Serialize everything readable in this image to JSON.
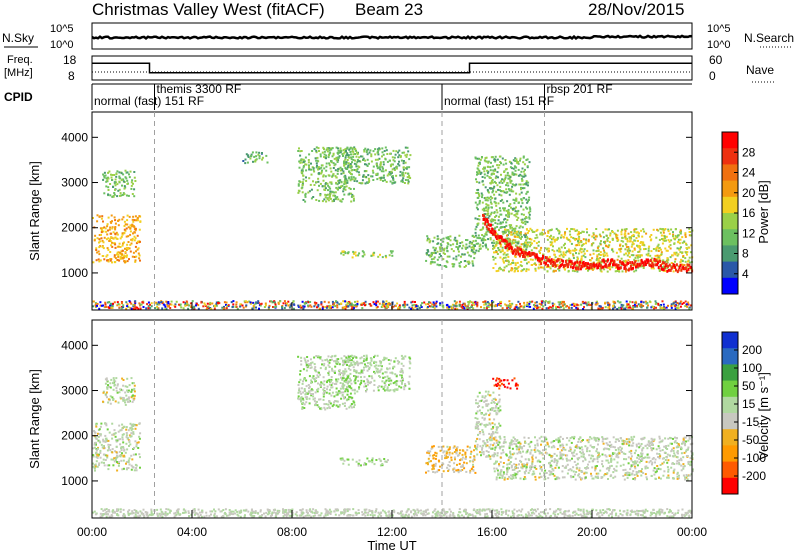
{
  "header": {
    "title": "Christmas Valley West (fitACF)",
    "beam": "Beam 23",
    "date": "28/Nov/2015"
  },
  "top_panels": {
    "nsky_label": "N.Sky",
    "nsearch_label": "N.Search",
    "count_ticks": [
      "10^5",
      "10^0"
    ],
    "freq_label": "Freq.",
    "freq_unit": "[MHz]",
    "freq_ticks": [
      "18",
      "8"
    ],
    "nave_label": "Nave",
    "nave_ticks": [
      "60",
      "0"
    ],
    "cpid_label": "CPID",
    "cpid_segments": [
      {
        "start_hour": 0,
        "end_hour": 14,
        "labels": [
          "normal",
          "(fast)",
          "151 RF"
        ]
      },
      {
        "start_hour": 2.5,
        "end_hour": 14,
        "labels": [
          "themis",
          "3300 RF"
        ]
      },
      {
        "start_hour": 14,
        "end_hour": 24,
        "labels": [
          "normal",
          "(fast)",
          "151 RF"
        ]
      },
      {
        "start_hour": 18.1,
        "end_hour": 24,
        "labels": [
          "rbsp",
          "201 RF"
        ]
      }
    ],
    "freq_steps": [
      {
        "from": 0,
        "to": 2.3,
        "mhz": 15
      },
      {
        "from": 2.3,
        "to": 15.1,
        "mhz": 11
      },
      {
        "from": 15.1,
        "to": 24,
        "mhz": 15
      }
    ]
  },
  "colors": {
    "power_scale": [
      "#0000ff",
      "#2a58a8",
      "#4a9a70",
      "#6cc060",
      "#9ad048",
      "#f2d020",
      "#f49a10",
      "#f07010",
      "#ee3010",
      "#ff0000"
    ],
    "velocity_scale": [
      "#ff0000",
      "#ff5a00",
      "#ff9a00",
      "#f0b020",
      "#c8c8c0",
      "#b0d8a0",
      "#70d040",
      "#3aa040",
      "#2a6ac0",
      "#1030d0"
    ],
    "grid_dash": "#a0a0a0"
  },
  "chart_data": [
    {
      "type": "heatmap",
      "name": "Power",
      "ylabel": "Slant Range [km]",
      "xlabel": "",
      "x_ticks": [],
      "y_ticks": [
        "1000",
        "2000",
        "3000",
        "4000"
      ],
      "xlim": [
        0,
        24
      ],
      "ylim": [
        180,
        4560
      ],
      "colorbar": {
        "label": "Power [dB]",
        "ticks": [
          "4",
          "8",
          "12",
          "16",
          "20",
          "24",
          "28"
        ],
        "range": [
          0,
          32
        ]
      },
      "regions": [
        {
          "x": [
            0.0,
            1.9
          ],
          "y": [
            1250,
            2300
          ],
          "value": 20
        },
        {
          "x": [
            0.4,
            1.7
          ],
          "y": [
            2700,
            3300
          ],
          "value": 12
        },
        {
          "x": [
            6.0,
            7.0
          ],
          "y": [
            3450,
            3700
          ],
          "value": 10
        },
        {
          "x": [
            8.2,
            10.5
          ],
          "y": [
            2600,
            3800
          ],
          "value": 12
        },
        {
          "x": [
            10.0,
            12.7
          ],
          "y": [
            3000,
            3800
          ],
          "value": 11
        },
        {
          "x": [
            9.9,
            12.0
          ],
          "y": [
            1360,
            1520
          ],
          "value": 14
        },
        {
          "x": [
            13.3,
            15.3
          ],
          "y": [
            1150,
            1850
          ],
          "value": 12
        },
        {
          "x": [
            15.3,
            17.5
          ],
          "y": [
            1500,
            3600
          ],
          "value": 12
        },
        {
          "x": [
            16.0,
            24.0
          ],
          "y": [
            1050,
            2000
          ],
          "value": 16
        }
      ],
      "echo_band": {
        "hours": [
          15.6,
          16.2,
          16.8,
          17.5,
          18.2,
          19.0,
          19.8,
          20.6,
          21.4,
          22.2,
          23.0,
          24.0
        ],
        "range_km": [
          2250,
          1800,
          1550,
          1400,
          1280,
          1220,
          1180,
          1250,
          1180,
          1300,
          1150,
          1150
        ],
        "value": 29
      },
      "near_range_km": [
        180,
        400
      ]
    },
    {
      "type": "heatmap",
      "name": "Velocity",
      "ylabel": "Slant Range [km]",
      "xlabel": "Time UT",
      "x_ticks": [
        "00:00",
        "04:00",
        "08:00",
        "12:00",
        "16:00",
        "20:00",
        "00:00"
      ],
      "y_ticks": [
        "1000",
        "2000",
        "3000",
        "4000"
      ],
      "xlim": [
        0,
        24
      ],
      "ylim": [
        180,
        4560
      ],
      "colorbar": {
        "label": "Velocity [m s⁻¹]",
        "ticks": [
          "200",
          "100",
          "50",
          "15",
          "-15",
          "-50",
          "-100",
          "-200"
        ],
        "range": [
          -250,
          250
        ]
      },
      "regions": [
        {
          "x": [
            0.0,
            1.9
          ],
          "y": [
            1250,
            2300
          ],
          "value": 0
        },
        {
          "x": [
            0.4,
            1.7
          ],
          "y": [
            2700,
            3300
          ],
          "value": 0
        },
        {
          "x": [
            8.2,
            10.5
          ],
          "y": [
            2600,
            3800
          ],
          "value": 20
        },
        {
          "x": [
            10.0,
            12.7
          ],
          "y": [
            3000,
            3800
          ],
          "value": 30
        },
        {
          "x": [
            9.9,
            12.0
          ],
          "y": [
            1360,
            1520
          ],
          "value": 40
        },
        {
          "x": [
            13.3,
            15.3
          ],
          "y": [
            1200,
            1800
          ],
          "value": -60
        },
        {
          "x": [
            15.3,
            16.3
          ],
          "y": [
            1500,
            3000
          ],
          "value": 0
        },
        {
          "x": [
            16.0,
            17.0
          ],
          "y": [
            3050,
            3300
          ],
          "value": -220
        },
        {
          "x": [
            16.0,
            24.0
          ],
          "y": [
            1050,
            2000
          ],
          "value": 0
        }
      ],
      "near_range_km": [
        180,
        400
      ]
    }
  ]
}
